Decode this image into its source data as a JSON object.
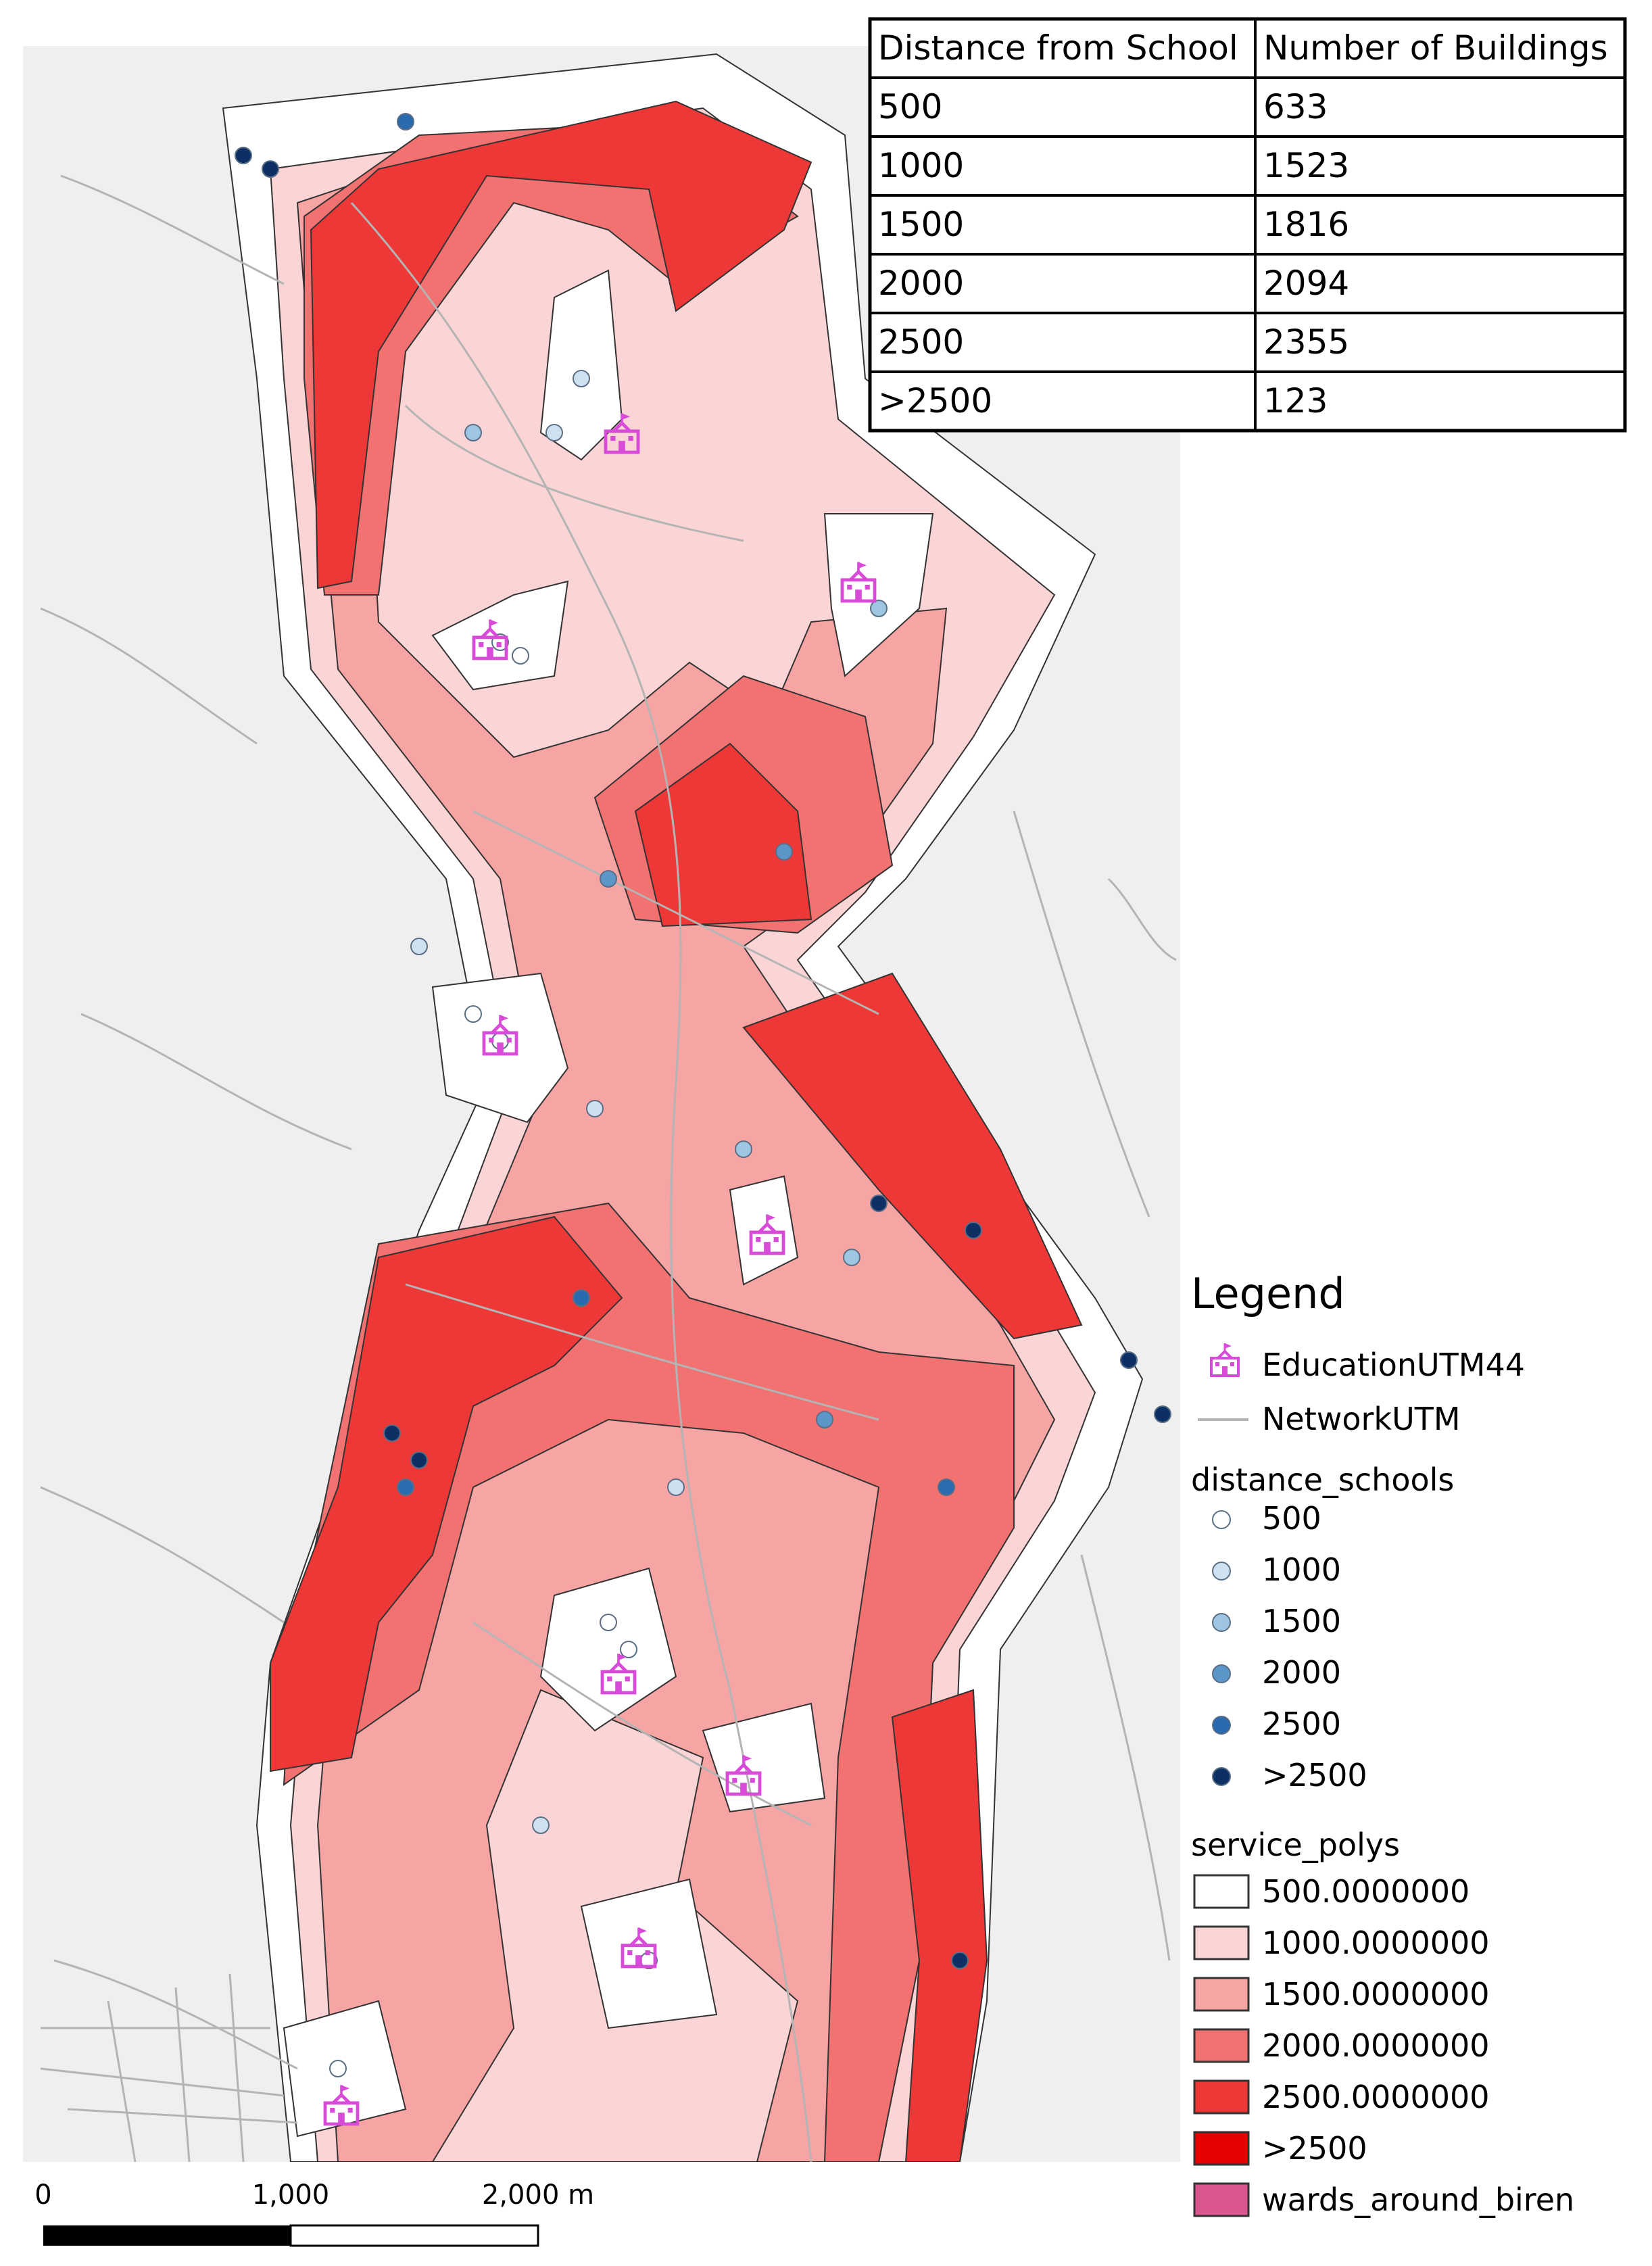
{
  "table": {
    "headers": [
      "Distance from School",
      "Number of Buildings"
    ],
    "rows": [
      [
        "500",
        "633"
      ],
      [
        "1000",
        "1523"
      ],
      [
        "1500",
        "1816"
      ],
      [
        "2000",
        "2094"
      ],
      [
        "2500",
        "2355"
      ],
      [
        ">2500",
        "123"
      ]
    ]
  },
  "legend": {
    "title": "Legend",
    "education_label": "EducationUTM44",
    "network_label": "NetworkUTM",
    "distance_group_title": "distance_schools",
    "distance_items": [
      {
        "label": "500",
        "color": "#ffffff"
      },
      {
        "label": "1000",
        "color": "#cfe0f0"
      },
      {
        "label": "1500",
        "color": "#9ec5e2"
      },
      {
        "label": "2000",
        "color": "#5c96c8"
      },
      {
        "label": "2500",
        "color": "#2a6aaf"
      },
      {
        "label": ">2500",
        "color": "#0d2f63"
      }
    ],
    "service_group_title": "service_polys",
    "service_items": [
      {
        "label": "500.0000000",
        "color": "#ffffff"
      },
      {
        "label": "1000.0000000",
        "color": "#fbd5d5"
      },
      {
        "label": "1500.0000000",
        "color": "#f7a4a4"
      },
      {
        "label": "2000.0000000",
        "color": "#f27272"
      },
      {
        "label": "2500.0000000",
        "color": "#ee3838"
      },
      {
        "label": ">2500",
        "color": "#e60000"
      },
      {
        "label": "wards_around_biren",
        "color": "#d9578e"
      }
    ]
  },
  "scalebar": {
    "labels": [
      "0",
      "1,000",
      "2,000 m"
    ]
  },
  "colors": {
    "school_icon": "#d84ad8",
    "road": "#b4b4b4",
    "background_land": "#efefef"
  },
  "icons": {
    "school": "school-building-icon"
  }
}
